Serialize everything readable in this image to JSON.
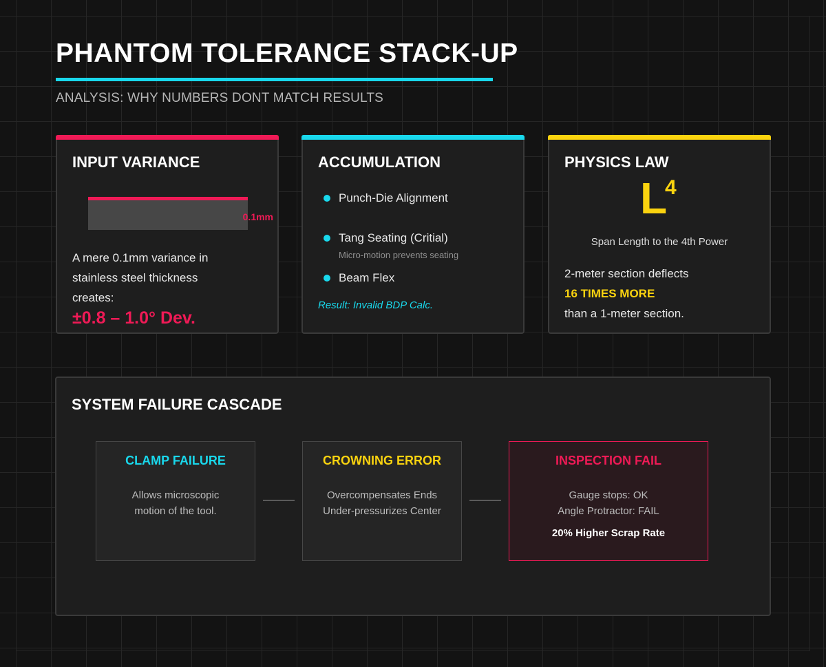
{
  "header": {
    "title": "PHANTOM TOLERANCE STACK-UP",
    "subtitle": "ANALYSIS: WHY NUMBERS DONT MATCH RESULTS"
  },
  "colors": {
    "magenta": "#ef1a56",
    "cyan": "#19d8ec",
    "yellow": "#fad30f",
    "background": "#131313",
    "card": "#1e1e1e"
  },
  "cards": {
    "input_variance": {
      "title": "INPUT VARIANCE",
      "variance_label": "0.1mm",
      "body": "A mere 0.1mm variance in stainless steel thickness creates:",
      "deviation": "±0.8 – 1.0° Dev."
    },
    "accumulation": {
      "title": "ACCUMULATION",
      "items": [
        {
          "label": "Punch-Die Alignment"
        },
        {
          "label": "Tang Seating (Critial)",
          "sub": "Micro-motion prevents seating"
        },
        {
          "label": "Beam Flex"
        }
      ],
      "result": "Result: Invalid BDP Calc."
    },
    "physics_law": {
      "title": "PHYSICS LAW",
      "symbol": "L",
      "exponent": "4",
      "caption": "Span Length to the 4th Power",
      "line1": "2-meter section deflects",
      "emphasis": "16 TIMES MORE",
      "line3": "than a 1-meter section."
    }
  },
  "cascade": {
    "title": "SYSTEM FAILURE CASCADE",
    "stages": [
      {
        "heading": "CLAMP FAILURE",
        "lines": [
          "Allows microscopic",
          "motion of the tool."
        ]
      },
      {
        "heading": "CROWNING ERROR",
        "lines": [
          "Overcompensates Ends",
          "Under-pressurizes Center"
        ]
      },
      {
        "heading": "INSPECTION FAIL",
        "lines": [
          "Gauge stops: OK",
          "Angle Protractor: FAIL"
        ],
        "emphasis": "20% Higher Scrap Rate"
      }
    ]
  }
}
